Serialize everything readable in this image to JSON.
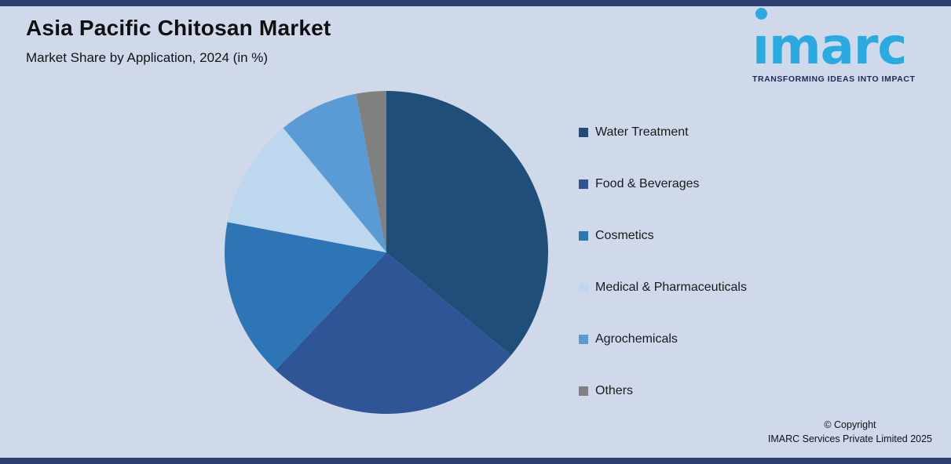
{
  "page": {
    "title": "Asia Pacific Chitosan Market",
    "subtitle": "Market Share by Application, 2024 (in %)",
    "copyright_line1": "© Copyright",
    "copyright_line2": "IMARC Services Private Limited 2025"
  },
  "logo": {
    "text": "imarc",
    "tagline": "TRANSFORMING IDEAS INTO IMPACT",
    "color": "#29ABE2",
    "tagline_color": "#1C2B5A"
  },
  "colors": {
    "background": "#CFD9EA",
    "frame_bar": "#2F3C6E"
  },
  "chart_data": {
    "type": "pie",
    "title": "Asia Pacific Chitosan Market",
    "subtitle": "Market Share by Application, 2024 (in %)",
    "unit": "%",
    "start_angle_deg": 0,
    "direction": "clockwise",
    "legend_position": "right",
    "data_labels": false,
    "segments": [
      {
        "label": "Water Treatment",
        "value": 36,
        "color": "#1F4E79"
      },
      {
        "label": "Food & Beverages",
        "value": 26,
        "color": "#2F5597"
      },
      {
        "label": "Cosmetics",
        "value": 16,
        "color": "#2E75B6"
      },
      {
        "label": "Medical & Pharmaceuticals",
        "value": 11,
        "color": "#BDD7EE"
      },
      {
        "label": "Agrochemicals",
        "value": 8,
        "color": "#5B9BD5"
      },
      {
        "label": "Others",
        "value": 3,
        "color": "#808080"
      }
    ]
  }
}
